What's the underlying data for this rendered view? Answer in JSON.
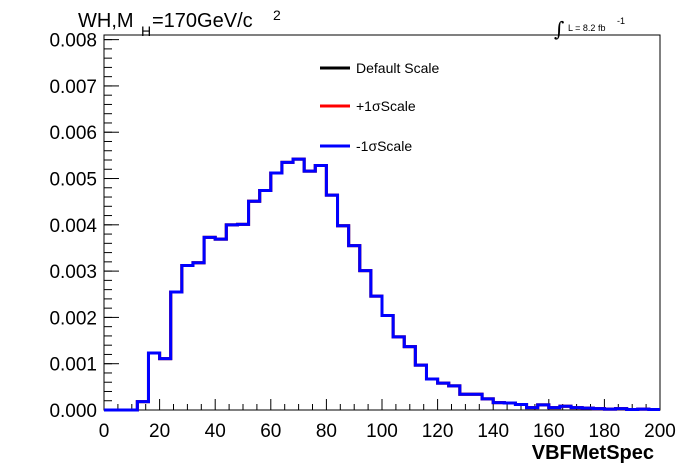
{
  "title": {
    "prefix": "WH,M",
    "subscript": "H",
    "suffix": "=170GeV/c",
    "superscript": "2"
  },
  "lumi": {
    "integral": "∫",
    "text": "L = 8.2 fb",
    "superscript": "-1"
  },
  "colors": {
    "default": "#000000",
    "plus": "#ff0000",
    "minus": "#0000ff"
  },
  "chart_data": {
    "type": "histogram",
    "xlabel": "VBFMetSpec",
    "ylabel": "",
    "xlim": [
      0,
      200
    ],
    "ylim": [
      0,
      0.0081
    ],
    "x_ticks": [
      "0",
      "20",
      "40",
      "60",
      "80",
      "100",
      "120",
      "140",
      "160",
      "180",
      "200"
    ],
    "y_ticks": [
      "0.000",
      "0.001",
      "0.002",
      "0.003",
      "0.004",
      "0.005",
      "0.006",
      "0.007",
      "0.008"
    ],
    "bin_edges": [
      0,
      4,
      8,
      12,
      16,
      20,
      24,
      28,
      32,
      36,
      40,
      44,
      48,
      52,
      56,
      60,
      64,
      68,
      72,
      76,
      80,
      84,
      88,
      92,
      96,
      100,
      104,
      108,
      112,
      116,
      120,
      124,
      128,
      132,
      136,
      140,
      144,
      148,
      152,
      156,
      160,
      164,
      168,
      172,
      176,
      180,
      184,
      188,
      192,
      196,
      200
    ],
    "legend": [
      "Default Scale",
      "+1σScale",
      "-1σScale"
    ],
    "series": [
      {
        "name": "Default Scale",
        "color": "#000000",
        "values": [
          0,
          0,
          0,
          0.00018,
          0.00123,
          0.00111,
          0.00255,
          0.00312,
          0.00318,
          0.00373,
          0.00369,
          0.004,
          0.00401,
          0.00451,
          0.00474,
          0.00512,
          0.00535,
          0.00542,
          0.00516,
          0.00528,
          0.00464,
          0.00398,
          0.00355,
          0.00301,
          0.00246,
          0.00204,
          0.00158,
          0.00137,
          0.00097,
          0.00067,
          0.00058,
          0.00052,
          0.00034,
          0.00034,
          0.00024,
          0.00016,
          0.00015,
          0.00012,
          5e-05,
          0.00011,
          5e-05,
          8e-05,
          5e-05,
          4e-05,
          3e-05,
          2e-05,
          3e-05,
          1e-05,
          2e-05,
          1e-05
        ]
      },
      {
        "name": "+1σScale",
        "color": "#ff0000",
        "values": [
          0,
          0,
          0,
          0.00018,
          0.00123,
          0.00111,
          0.00255,
          0.00312,
          0.00318,
          0.00373,
          0.00369,
          0.004,
          0.00401,
          0.00451,
          0.00474,
          0.00512,
          0.00535,
          0.00542,
          0.00516,
          0.00528,
          0.00464,
          0.00398,
          0.00355,
          0.00301,
          0.00246,
          0.00204,
          0.00158,
          0.00137,
          0.00097,
          0.00067,
          0.00058,
          0.00052,
          0.00034,
          0.00034,
          0.00024,
          0.00016,
          0.00015,
          0.00012,
          5e-05,
          0.00011,
          5e-05,
          8e-05,
          5e-05,
          4e-05,
          3e-05,
          2e-05,
          3e-05,
          1e-05,
          2e-05,
          1e-05
        ]
      },
      {
        "name": "-1σScale",
        "color": "#0000ff",
        "values": [
          0,
          0,
          0,
          0.00018,
          0.00123,
          0.00111,
          0.00255,
          0.00312,
          0.00318,
          0.00373,
          0.00369,
          0.004,
          0.00401,
          0.00451,
          0.00474,
          0.00512,
          0.00535,
          0.00542,
          0.00516,
          0.00528,
          0.00464,
          0.00398,
          0.00355,
          0.00301,
          0.00246,
          0.00204,
          0.00158,
          0.00137,
          0.00097,
          0.00067,
          0.00058,
          0.00052,
          0.00034,
          0.00034,
          0.00024,
          0.00016,
          0.00015,
          0.00012,
          5e-05,
          0.00011,
          5e-05,
          8e-05,
          5e-05,
          4e-05,
          3e-05,
          2e-05,
          3e-05,
          1e-05,
          2e-05,
          1e-05
        ]
      }
    ]
  }
}
